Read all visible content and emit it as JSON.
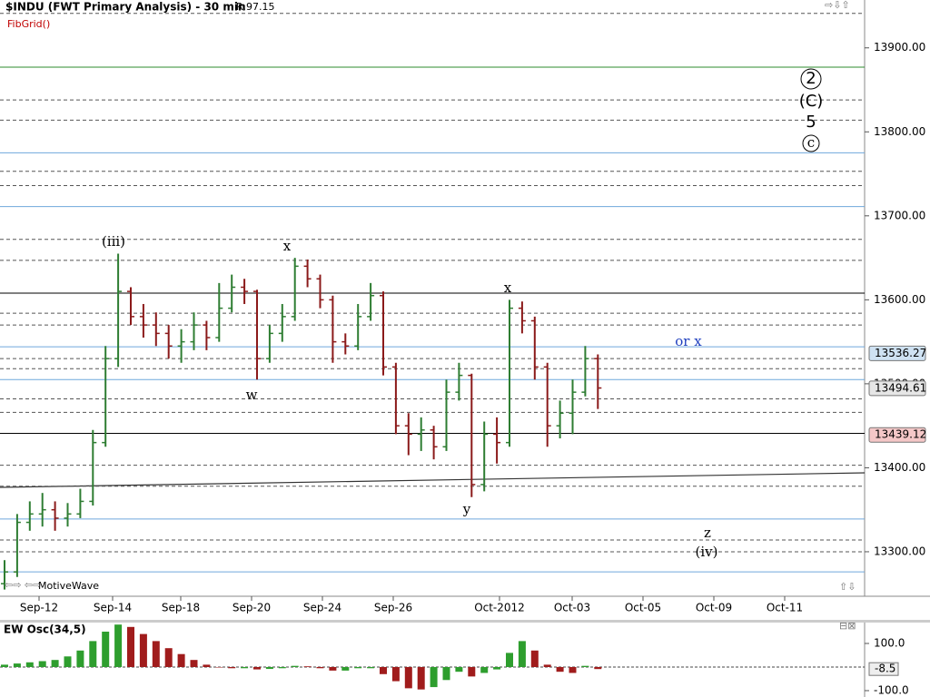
{
  "chart_data": [
    {
      "type": "ohlc",
      "title": "$INDU (FWT Primary Analysis) - 30 min",
      "reading": "R:97.15",
      "study": "FibGrid()",
      "watermark": "MotiveWave",
      "xtick_labels": [
        "Sep-12",
        "Sep-14",
        "Sep-18",
        "Sep-20",
        "Sep-24",
        "Sep-26",
        "Oct-2012",
        "Oct-03",
        "Oct-05",
        "Oct-09",
        "Oct-11"
      ],
      "open": [
        13262,
        13276,
        13335,
        13345,
        13350,
        13340,
        13345,
        13360,
        13430,
        13530,
        13610,
        13580,
        13570,
        13560,
        13545,
        13550,
        13570,
        13555,
        13590,
        13615,
        13610,
        13530,
        13560,
        13580,
        13640,
        13625,
        13600,
        13550,
        13545,
        13580,
        13605,
        13520,
        13450,
        13440,
        13445,
        13425,
        13490,
        13510,
        13380,
        13440,
        13430,
        13590,
        13575,
        13520,
        13450,
        13465,
        13490,
        13530
      ],
      "high": [
        13290,
        13345,
        13360,
        13370,
        13360,
        13358,
        13375,
        13445,
        13545,
        13655,
        13615,
        13595,
        13585,
        13570,
        13565,
        13585,
        13575,
        13620,
        13630,
        13625,
        13612,
        13570,
        13595,
        13650,
        13648,
        13630,
        13605,
        13560,
        13595,
        13620,
        13610,
        13525,
        13465,
        13460,
        13450,
        13505,
        13525,
        13512,
        13455,
        13460,
        13600,
        13598,
        13580,
        13525,
        13480,
        13505,
        13545,
        13535
      ],
      "low": [
        13255,
        13270,
        13325,
        13330,
        13325,
        13330,
        13340,
        13355,
        13425,
        13520,
        13570,
        13555,
        13545,
        13530,
        13525,
        13540,
        13540,
        13550,
        13585,
        13595,
        13505,
        13525,
        13550,
        13575,
        13615,
        13590,
        13525,
        13535,
        13540,
        13575,
        13510,
        13440,
        13415,
        13420,
        13410,
        13420,
        13480,
        13365,
        13372,
        13405,
        13425,
        13560,
        13505,
        13425,
        13435,
        13440,
        13485,
        13470
      ],
      "close": [
        13276,
        13335,
        13345,
        13350,
        13340,
        13345,
        13360,
        13430,
        13530,
        13610,
        13580,
        13570,
        13560,
        13545,
        13550,
        13570,
        13555,
        13590,
        13615,
        13610,
        13530,
        13560,
        13580,
        13640,
        13625,
        13600,
        13550,
        13545,
        13580,
        13605,
        13520,
        13450,
        13440,
        13445,
        13425,
        13490,
        13510,
        13380,
        13440,
        13430,
        13590,
        13575,
        13520,
        13450,
        13465,
        13490,
        13530,
        13495
      ],
      "up_color": "#2e7d32",
      "down_color": "#8b1a1a",
      "ylim": [
        13247,
        13957
      ],
      "yticks": [
        {
          "value": 13300,
          "label": "13300.00"
        },
        {
          "value": 13400,
          "label": "13400.00"
        },
        {
          "value": 13500,
          "label": "13500.00"
        },
        {
          "value": 13600,
          "label": "13600.00"
        },
        {
          "value": 13700,
          "label": "13700.00"
        },
        {
          "value": 13800,
          "label": "13800.00"
        },
        {
          "value": 13900,
          "label": "13900.00"
        }
      ],
      "levels": [
        {
          "value": 13941,
          "color": "#555555",
          "style": "dashed"
        },
        {
          "value": 13877,
          "color": "#2e8b2e",
          "style": "solid"
        },
        {
          "value": 13838,
          "color": "#555555",
          "style": "dashed"
        },
        {
          "value": 13814,
          "color": "#555555",
          "style": "dashed"
        },
        {
          "value": 13775,
          "color": "#6fa8dc",
          "style": "solid"
        },
        {
          "value": 13753,
          "color": "#555555",
          "style": "dashed"
        },
        {
          "value": 13736,
          "color": "#555555",
          "style": "dashed"
        },
        {
          "value": 13711,
          "color": "#6fa8dc",
          "style": "solid"
        },
        {
          "value": 13672,
          "color": "#555555",
          "style": "dashed"
        },
        {
          "value": 13647,
          "color": "#555555",
          "style": "dashed"
        },
        {
          "value": 13608,
          "color": "#000000",
          "style": "solid"
        },
        {
          "value": 13584,
          "color": "#555555",
          "style": "dashed"
        },
        {
          "value": 13570,
          "color": "#555555",
          "style": "dashed"
        },
        {
          "value": 13544,
          "color": "#6fa8dc",
          "style": "solid"
        },
        {
          "value": 13530,
          "color": "#555555",
          "style": "dashed"
        },
        {
          "value": 13518,
          "color": "#555555",
          "style": "dashed"
        },
        {
          "value": 13505,
          "color": "#6fa8dc",
          "style": "solid"
        },
        {
          "value": 13482,
          "color": "#555555",
          "style": "dashed"
        },
        {
          "value": 13466,
          "color": "#555555",
          "style": "dashed"
        },
        {
          "value": 13441,
          "color": "#000000",
          "style": "solid"
        },
        {
          "value": 13403,
          "color": "#555555",
          "style": "dashed"
        },
        {
          "value": 13378,
          "color": "#555555",
          "style": "dashed"
        },
        {
          "value": 13339,
          "color": "#6fa8dc",
          "style": "solid"
        },
        {
          "value": 13314,
          "color": "#555555",
          "style": "dashed"
        },
        {
          "value": 13300,
          "color": "#555555",
          "style": "dashed"
        },
        {
          "value": 13276,
          "color": "#6fa8dc",
          "style": "solid"
        }
      ],
      "price_markers": [
        {
          "value": 13536.27,
          "color": "#cfe2f3"
        },
        {
          "value": 13494.61,
          "color": "#e6e6e6"
        },
        {
          "value": 13439.12,
          "color": "#f4c7c7"
        }
      ],
      "annotations": [
        {
          "text": "(iii)",
          "color": "#000000",
          "circled": false
        },
        {
          "text": "x",
          "color": "#000000",
          "circled": false
        },
        {
          "text": "w",
          "color": "#000000",
          "circled": false
        },
        {
          "text": "x",
          "color": "#000000",
          "circled": false
        },
        {
          "text": "y",
          "color": "#000000",
          "circled": false
        },
        {
          "text": "or x",
          "color": "#1f3fbf",
          "circled": false
        },
        {
          "text": "z",
          "color": "#000000",
          "circled": false
        },
        {
          "text": "(iv)",
          "color": "#000000",
          "circled": false
        },
        {
          "text": "2",
          "color": "#000000",
          "circled": true
        },
        {
          "text": "(C)",
          "color": "#000000",
          "circled": false
        },
        {
          "text": "5",
          "color": "#000000",
          "circled": false
        },
        {
          "text": "c",
          "color": "#000000",
          "circled": true
        }
      ]
    },
    {
      "type": "histogram",
      "title": "EW Osc(34,5)",
      "values": [
        10,
        15,
        20,
        25,
        30,
        45,
        70,
        110,
        150,
        180,
        170,
        140,
        110,
        80,
        55,
        30,
        10,
        0,
        -5,
        -5,
        -10,
        -8,
        -5,
        5,
        3,
        -5,
        -15,
        -15,
        -5,
        -5,
        -30,
        -60,
        -90,
        -95,
        -85,
        -55,
        -20,
        -40,
        -25,
        -10,
        60,
        110,
        70,
        10,
        -20,
        -25,
        5,
        -8.5
      ],
      "up_color": "#2e9e2e",
      "down_color": "#a01c1c",
      "ylim": [
        -127,
        200
      ],
      "yticks": [
        {
          "value": 100,
          "label": "100.0"
        },
        {
          "value": -100,
          "label": "-100.0"
        }
      ],
      "last_value": -8.5
    }
  ]
}
